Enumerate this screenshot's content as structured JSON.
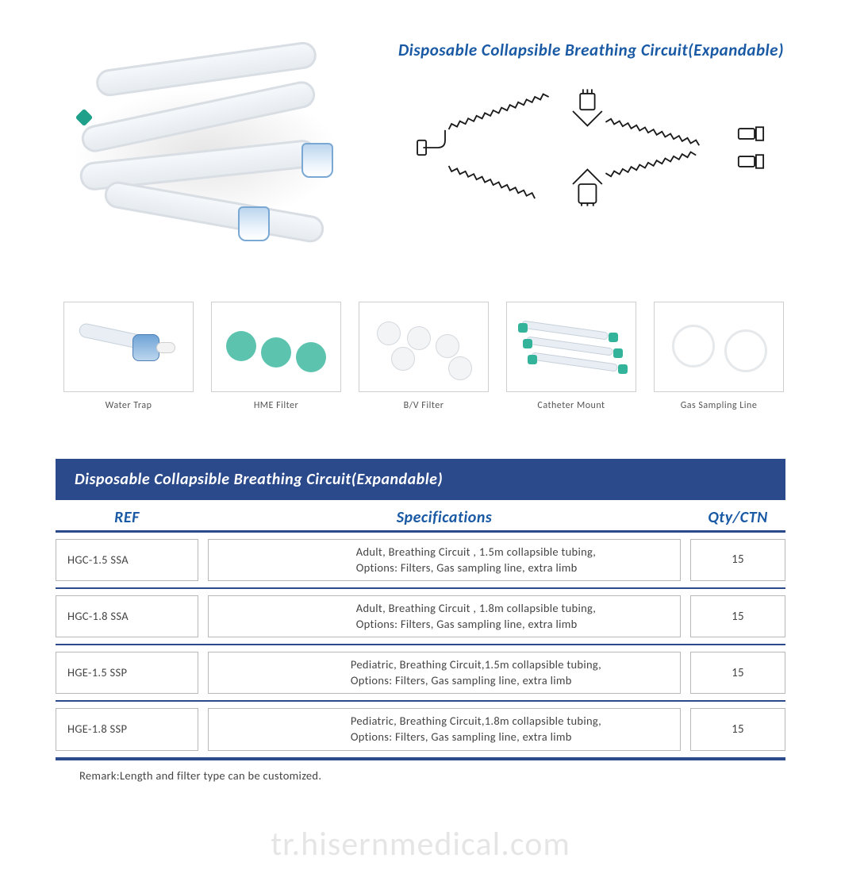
{
  "title": "Disposable Collapsible Breathing Circuit(Expandable)",
  "title_color": "#1a5aa5",
  "title_fontsize": 21,
  "diagram_stroke": "#1a1a1a",
  "thumbnails": [
    {
      "label": "Water Trap"
    },
    {
      "label": "HME Filter"
    },
    {
      "label": "B/V Filter"
    },
    {
      "label": "Catheter Mount"
    },
    {
      "label": "Gas Sampling Line"
    }
  ],
  "thumbnail_border_color": "#cfcfcf",
  "thumbnail_label_color": "#555555",
  "thumbnail_label_fontsize": 12,
  "spec_table": {
    "title": "Disposable Collapsible Breathing Circuit(Expandable)",
    "title_bg": "#2b4a8b",
    "title_color": "#ffffff",
    "header_color": "#1a5aa5",
    "border_color": "#2b4a8b",
    "cell_border_color": "#b8b8b8",
    "cell_text_color": "#444444",
    "columns": {
      "ref": "REF",
      "spec": "Specifications",
      "qty": "Qty/CTN"
    },
    "rows": [
      {
        "ref": "HGC-1.5 SSA",
        "spec": "Adult, Breathing Circuit , 1.5m collapsible tubing,\nOptions: Filters, Gas sampling line, extra limb",
        "qty": "15"
      },
      {
        "ref": "HGC-1.8 SSA",
        "spec": "Adult, Breathing Circuit , 1.8m collapsible tubing,\nOptions: Filters, Gas sampling line, extra limb",
        "qty": "15"
      },
      {
        "ref": "HGE-1.5 SSP",
        "spec": "Pediatric, Breathing Circuit,1.5m collapsible tubing,\nOptions: Filters, Gas sampling line, extra limb",
        "qty": "15"
      },
      {
        "ref": "HGE-1.8 SSP",
        "spec": "Pediatric, Breathing Circuit,1.8m collapsible tubing,\nOptions: Filters, Gas sampling line, extra limb",
        "qty": "15"
      }
    ],
    "remark": "Remark:Length and filter type can be customized."
  },
  "watermark": "tr.hisernmedical.com",
  "watermark_color": "rgba(0,0,0,0.10)",
  "watermark_fontsize": 42,
  "accent_colors": {
    "blue": "#1a5aa5",
    "navy": "#2b4a8b",
    "teal": "#1fa08a",
    "cap_blue": "#7aa8d4"
  }
}
